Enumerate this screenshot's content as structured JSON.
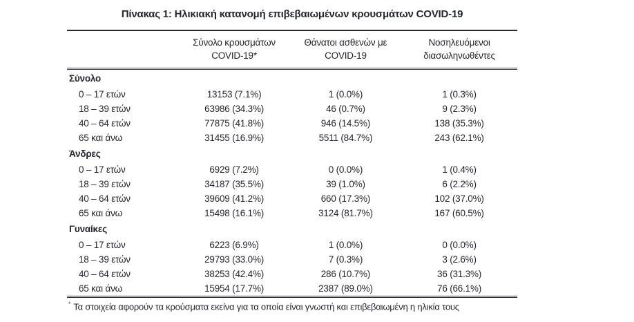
{
  "page": {
    "title": "Πίνακας 1: Ηλικιακή κατανομή επιβεβαιωμένων κρουσμάτων COVID-19"
  },
  "colors": {
    "text": "#24272e",
    "rule": "#26282c"
  },
  "table": {
    "columns": [
      {
        "line1": "Σύνολο κρουσμάτων",
        "line2": "COVID-19*"
      },
      {
        "line1": "Θάνατοι ασθενών με",
        "line2": "COVID-19"
      },
      {
        "line1": "Νοσηλευόμενοι",
        "line2": "διασωληνωθέντες"
      }
    ],
    "sections": [
      {
        "label": "Σύνολο",
        "rows": [
          {
            "age": "0 – 17 ετών",
            "cases": "13153 (7.1%)",
            "deaths": "1 (0.0%)",
            "intubated": "1 (0.3%)"
          },
          {
            "age": "18 – 39 ετών",
            "cases": "63986 (34.3%)",
            "deaths": "46 (0.7%)",
            "intubated": "9 (2.3%)"
          },
          {
            "age": "40 – 64 ετών",
            "cases": "77875 (41.8%)",
            "deaths": "946 (14.5%)",
            "intubated": "138 (35.3%)"
          },
          {
            "age": "65 και άνω",
            "cases": "31455 (16.9%)",
            "deaths": "5511 (84.7%)",
            "intubated": "243 (62.1%)"
          }
        ]
      },
      {
        "label": "Άνδρες",
        "rows": [
          {
            "age": "0 – 17 ετών",
            "cases": "6929 (7.2%)",
            "deaths": "0 (0.0%)",
            "intubated": "1 (0.4%)"
          },
          {
            "age": "18 – 39 ετών",
            "cases": "34187 (35.5%)",
            "deaths": "39 (1.0%)",
            "intubated": "6 (2.2%)"
          },
          {
            "age": "40 – 64 ετών",
            "cases": "39609 (41.2%)",
            "deaths": "660 (17.3%)",
            "intubated": "102 (37.0%)"
          },
          {
            "age": "65 και άνω",
            "cases": "15498 (16.1%)",
            "deaths": "3124 (81.7%)",
            "intubated": "167 (60.5%)"
          }
        ]
      },
      {
        "label": "Γυναίκες",
        "rows": [
          {
            "age": "0 – 17 ετών",
            "cases": "6223 (6.9%)",
            "deaths": "1 (0.0%)",
            "intubated": "0 (0.0%)"
          },
          {
            "age": "18 – 39 ετών",
            "cases": "29793 (33.0%)",
            "deaths": "7 (0.3%)",
            "intubated": "3 (2.6%)"
          },
          {
            "age": "40 – 64 ετών",
            "cases": "38253 (42.4%)",
            "deaths": "286 (10.7%)",
            "intubated": "36 (31.3%)"
          },
          {
            "age": "65 και άνω",
            "cases": "15954 (17.7%)",
            "deaths": "2387 (89.0%)",
            "intubated": "76 (66.1%)"
          }
        ]
      }
    ],
    "footnote": {
      "marker": "*",
      "text": "Τα στοιχεία αφορούν τα κρούσματα εκείνα για τα οποία είναι γνωστή και επιβεβαιωμένη η ηλικία τους"
    }
  }
}
